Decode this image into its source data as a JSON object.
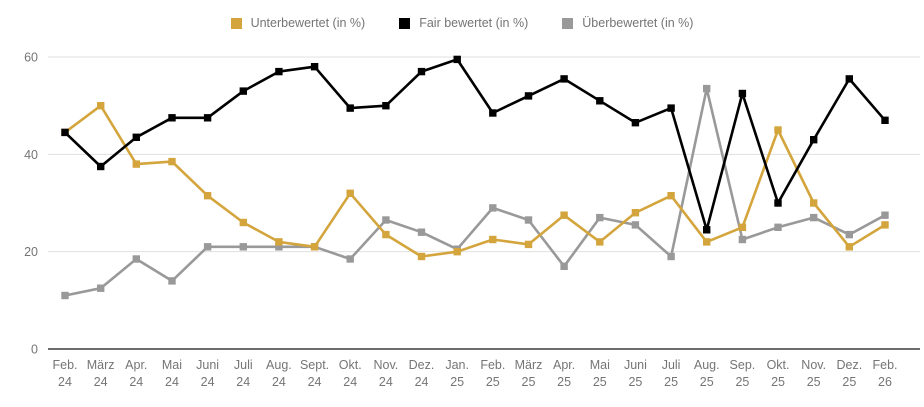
{
  "legend": {
    "items": [
      {
        "label": "Unterbewertet (in %)",
        "color": "#D3A53C"
      },
      {
        "label": "Fair bewertet (in %)",
        "color": "#000000"
      },
      {
        "label": "Überbewertet (in %)",
        "color": "#999999"
      }
    ]
  },
  "chart_data": {
    "type": "line",
    "title": "",
    "xlabel": "",
    "ylabel": "",
    "categories": [
      "Feb. 24",
      "März 24",
      "Apr. 24",
      "Mai 24",
      "Juni 24",
      "Juli 24",
      "Aug. 24",
      "Sept. 24",
      "Okt. 24",
      "Nov. 24",
      "Dez. 24",
      "Jan. 25",
      "Feb. 25",
      "März 25",
      "Apr. 25",
      "Mai 25",
      "Juni 25",
      "Juli 25",
      "Aug. 25",
      "Sep. 25",
      "Okt. 25",
      "Nov. 25",
      "Dez. 25",
      "Feb. 26"
    ],
    "series": [
      {
        "name": "Unterbewertet (in %)",
        "color": "#D3A53C",
        "values": [
          44.5,
          50,
          38,
          38.5,
          31.5,
          26,
          22,
          21,
          32,
          23.5,
          19,
          20,
          22.5,
          21.5,
          27.5,
          22,
          28,
          31.5,
          22,
          25,
          45,
          30,
          21,
          25.5
        ]
      },
      {
        "name": "Fair bewertet (in %)",
        "color": "#000000",
        "values": [
          44.5,
          37.5,
          43.5,
          47.5,
          47.5,
          53,
          57,
          58,
          49.5,
          50,
          57,
          59.5,
          48.5,
          52,
          55.5,
          51,
          46.5,
          49.5,
          24.5,
          52.5,
          30,
          43,
          55.5,
          47
        ]
      },
      {
        "name": "Überbewertet (in %)",
        "color": "#999999",
        "values": [
          11,
          12.5,
          18.5,
          14,
          21,
          21,
          21,
          21,
          18.5,
          26.5,
          24,
          20.5,
          29,
          26.5,
          17,
          27,
          25.5,
          19,
          53.5,
          22.5,
          25,
          27,
          23.5,
          27.5
        ]
      }
    ],
    "ylim": [
      0,
      60
    ],
    "y_ticks": [
      0,
      20,
      40,
      60
    ],
    "grid": true,
    "legend_position": "top",
    "point_shape": "square"
  },
  "axis_style": {
    "text_color": "#757575",
    "grid_color": "#E0E0E0",
    "baseline_color": "#3C3C3C"
  }
}
